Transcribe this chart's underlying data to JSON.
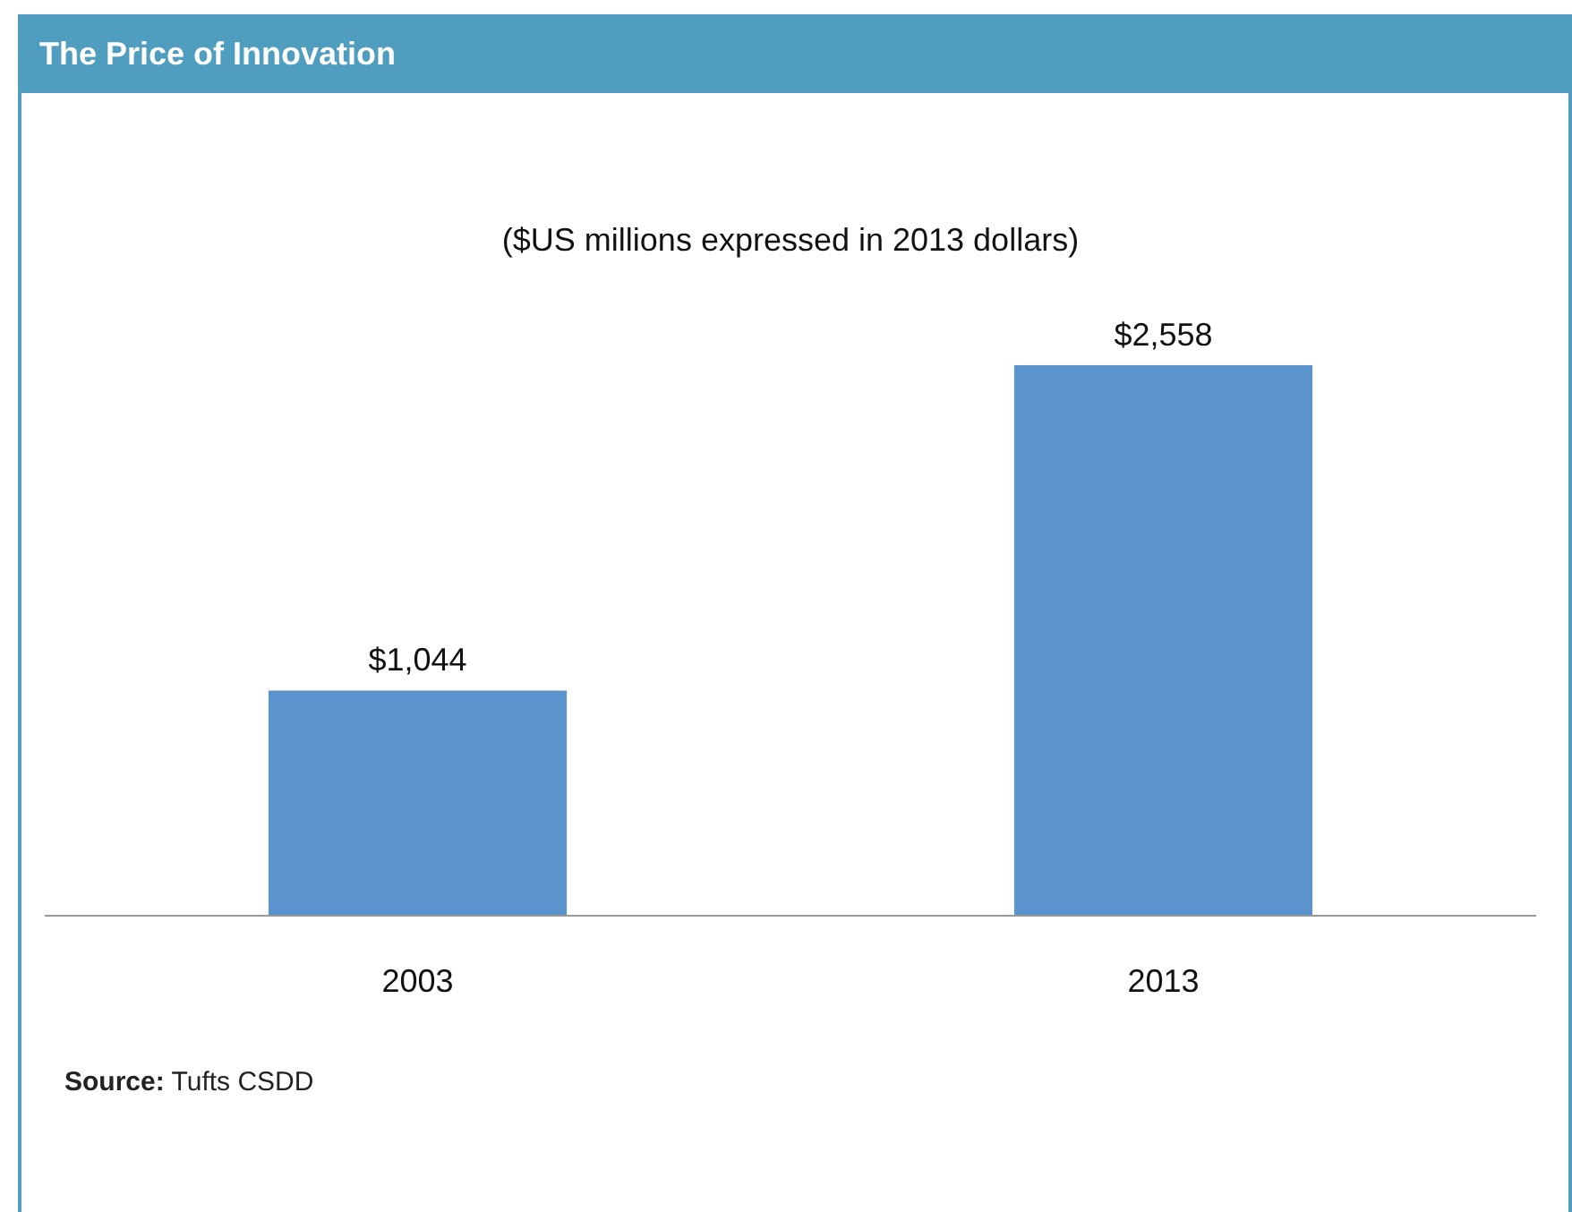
{
  "chart_data": {
    "type": "bar",
    "title": "The Price of Innovation",
    "subtitle": "($US millions expressed in 2013 dollars)",
    "categories": [
      "2003",
      "2013"
    ],
    "values": [
      1044,
      2558
    ],
    "value_labels": [
      "$1,044",
      "$2,558"
    ],
    "color": "#5b93cd",
    "annotations": [
      "Source: Tufts CSDD"
    ]
  }
}
